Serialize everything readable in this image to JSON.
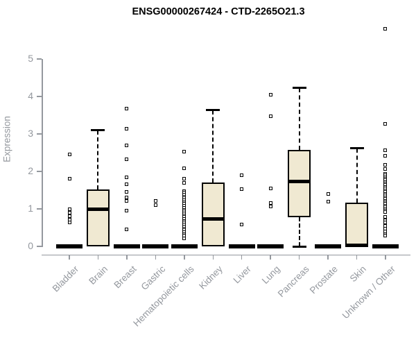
{
  "title": "ENSG00000267424 - CTD-2265O21.3",
  "chart_data": {
    "type": "boxplot",
    "title": "ENSG00000267424 - CTD-2265O21.3",
    "xlabel": "",
    "ylabel": "Expression",
    "ylim": [
      0,
      5.9
    ],
    "yticks": [
      0,
      1,
      2,
      3,
      4,
      5
    ],
    "grid": false,
    "legend": "none",
    "box_fill": "#F0E9D2",
    "box_stroke": "#000000",
    "axis_color": "#94989e",
    "categories": [
      "Bladder",
      "Brain",
      "Breast",
      "Gastric",
      "Hematopoietic cells",
      "Kidney",
      "Liver",
      "Lung",
      "Pancreas",
      "Prostate",
      "Skin",
      "Unknown / Other"
    ],
    "series": [
      {
        "name": "Bladder",
        "q1": 0,
        "median": 0,
        "q3": 0,
        "whisker_low": 0,
        "whisker_high": 0,
        "outliers": [
          2.46,
          1.8,
          0.99,
          0.9,
          0.81,
          0.72,
          0.63
        ]
      },
      {
        "name": "Brain",
        "q1": 0,
        "median": 0.99,
        "q3": 1.51,
        "whisker_low": 0,
        "whisker_high": 3.1,
        "outliers": []
      },
      {
        "name": "Breast",
        "q1": 0,
        "median": 0,
        "q3": 0,
        "whisker_low": 0,
        "whisker_high": 0,
        "outliers": [
          3.67,
          3.13,
          2.69,
          2.33,
          1.85,
          1.65,
          1.46,
          1.3,
          1.21,
          0.96,
          0.46
        ]
      },
      {
        "name": "Gastric",
        "q1": 0,
        "median": 0,
        "q3": 0,
        "whisker_low": 0,
        "whisker_high": 0,
        "outliers": [
          1.22,
          1.1
        ]
      },
      {
        "name": "Hematopoietic cells",
        "q1": 0,
        "median": 0,
        "q3": 0,
        "whisker_low": 0,
        "whisker_high": 0,
        "outliers": [
          2.53,
          2.08,
          1.8,
          1.7,
          1.48,
          1.43,
          1.38,
          1.33,
          1.28,
          1.23,
          1.18,
          1.13,
          1.08,
          1.03,
          0.98,
          0.93,
          0.88,
          0.83,
          0.78,
          0.73,
          0.68,
          0.63,
          0.58,
          0.53,
          0.48,
          0.43,
          0.38,
          0.33,
          0.28,
          0.22
        ]
      },
      {
        "name": "Kidney",
        "q1": 0,
        "median": 0.74,
        "q3": 1.7,
        "whisker_low": 0,
        "whisker_high": 3.63,
        "outliers": []
      },
      {
        "name": "Liver",
        "q1": 0,
        "median": 0,
        "q3": 0,
        "whisker_low": 0,
        "whisker_high": 0,
        "outliers": [
          1.89,
          1.52,
          0.59
        ]
      },
      {
        "name": "Lung",
        "q1": 0,
        "median": 0,
        "q3": 0,
        "whisker_low": 0,
        "whisker_high": 0,
        "outliers": [
          4.05,
          3.48,
          1.54,
          1.15,
          1.06
        ]
      },
      {
        "name": "Pancreas",
        "q1": 0.77,
        "median": 1.73,
        "q3": 2.57,
        "whisker_low": 0,
        "whisker_high": 4.23,
        "outliers": []
      },
      {
        "name": "Prostate",
        "q1": 0,
        "median": 0,
        "q3": 0,
        "whisker_low": 0,
        "whisker_high": 0,
        "outliers": [
          1.39,
          1.2
        ]
      },
      {
        "name": "Skin",
        "q1": 0,
        "median": 0.02,
        "q3": 1.17,
        "whisker_low": 0,
        "whisker_high": 2.62,
        "outliers": []
      },
      {
        "name": "Unknown / Other",
        "q1": 0,
        "median": 0,
        "q3": 0,
        "whisker_low": 0,
        "whisker_high": 0,
        "outliers": [
          5.81,
          3.26,
          2.56,
          2.41,
          2.17,
          2.07,
          1.94,
          1.9,
          1.85,
          1.81,
          1.76,
          1.72,
          1.67,
          1.63,
          1.58,
          1.54,
          1.49,
          1.45,
          1.4,
          1.36,
          1.31,
          1.27,
          1.22,
          1.18,
          1.13,
          1.09,
          1.04,
          1.0,
          0.95,
          0.91,
          0.78,
          0.7,
          0.63,
          0.55,
          0.48,
          0.4,
          0.33,
          0.28
        ]
      }
    ]
  }
}
